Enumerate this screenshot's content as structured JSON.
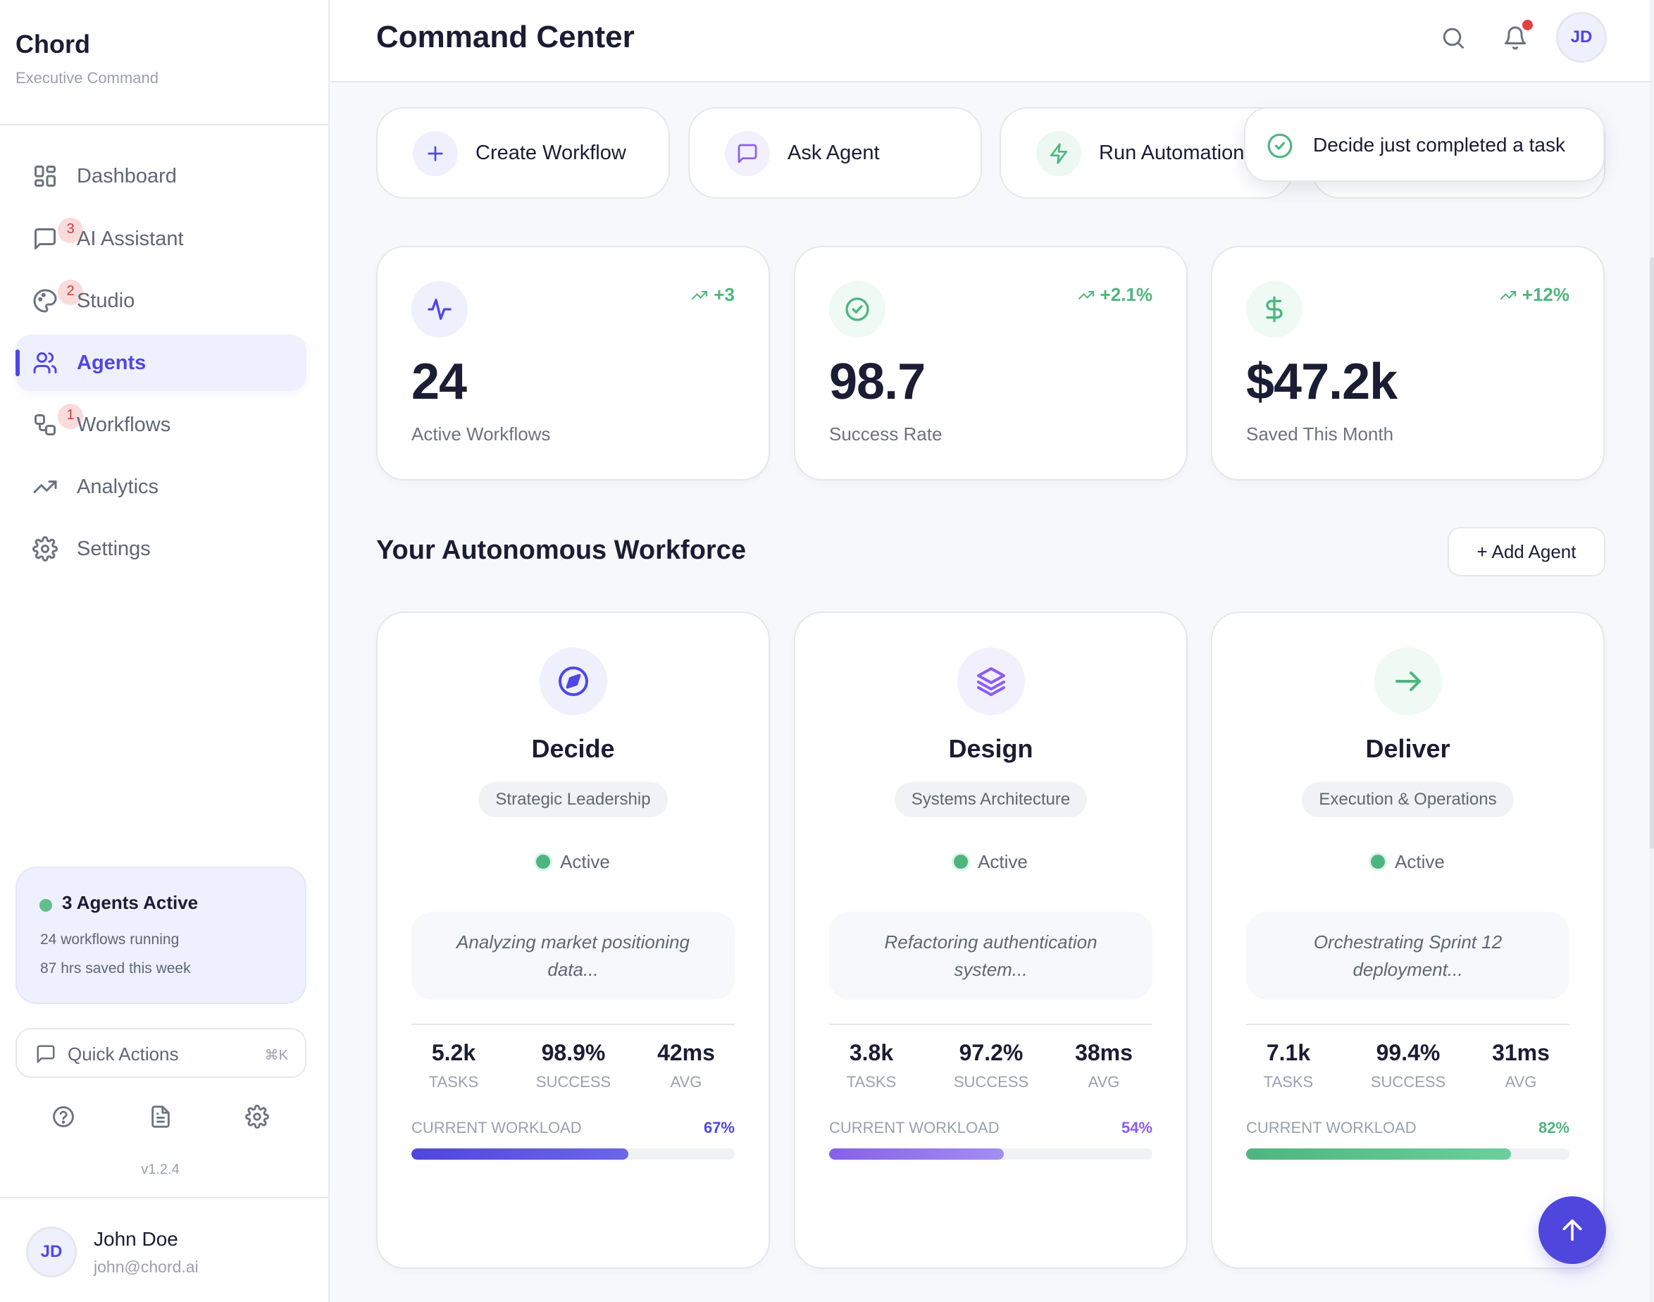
{
  "sidebar": {
    "brand": "Chord",
    "brand_subtitle": "Executive Command",
    "nav": [
      {
        "label": "Dashboard",
        "icon": "dashboard-grid-icon",
        "badge": null,
        "active": false
      },
      {
        "label": "AI Assistant",
        "icon": "message-square-icon",
        "badge": "3",
        "active": false
      },
      {
        "label": "Studio",
        "icon": "palette-icon",
        "badge": "2",
        "active": false
      },
      {
        "label": "Agents",
        "icon": "users-icon",
        "badge": null,
        "active": true
      },
      {
        "label": "Workflows",
        "icon": "workflow-icon",
        "badge": "1",
        "active": false
      },
      {
        "label": "Analytics",
        "icon": "trending-up-icon",
        "badge": null,
        "active": false
      },
      {
        "label": "Settings",
        "icon": "gear-icon",
        "badge": null,
        "active": false
      }
    ],
    "status": {
      "title": "3 Agents Active",
      "line1": "24 workflows running",
      "line2": "87 hrs saved this week"
    },
    "quick_actions": {
      "label": "Quick Actions",
      "shortcut": "⌘K"
    },
    "utility_icons": [
      "help-circle-icon",
      "document-icon",
      "gear-icon"
    ],
    "version": "v1.2.4",
    "user": {
      "initials": "JD",
      "name": "John Doe",
      "email": "john@chord.ai"
    }
  },
  "header": {
    "title": "Command Center",
    "avatar_initials": "JD",
    "has_notification": true
  },
  "quick_actions": [
    {
      "label": "Create Workflow",
      "icon": "plus-icon",
      "color": "#4f46e5",
      "bg": "#eef0fd"
    },
    {
      "label": "Ask Agent",
      "icon": "message-square-icon",
      "color": "#8b5cf6",
      "bg": "#f3f0fe"
    },
    {
      "label": "Run Automation",
      "icon": "lightning-icon",
      "color": "#4fb57f",
      "bg": "#eef8f2"
    }
  ],
  "toast": {
    "message": "Decide just completed a task"
  },
  "stats": [
    {
      "value": "24",
      "label": "Active Workflows",
      "delta": "+3",
      "icon": "activity-icon",
      "color": "#4f46e5",
      "bg": "#eef0fd"
    },
    {
      "value": "98.7",
      "label": "Success Rate",
      "delta": "+2.1%",
      "icon": "check-circle-icon",
      "color": "#4fb57f",
      "bg": "#eefaf3"
    },
    {
      "value": "$47.2k",
      "label": "Saved This Month",
      "delta": "+12%",
      "icon": "dollar-icon",
      "color": "#4fb57f",
      "bg": "#eefaf3"
    }
  ],
  "workforce": {
    "title": "Your Autonomous Workforce",
    "add_label": "+ Add Agent",
    "agents": [
      {
        "name": "Decide",
        "role": "Strategic Leadership",
        "status": "Active",
        "activity": "Analyzing market positioning data...",
        "icon": "compass-icon",
        "color": "#4f46e5",
        "bg": "#eef0fd",
        "metrics": [
          {
            "value": "5.2k",
            "label": "TASKS"
          },
          {
            "value": "98.9%",
            "label": "SUCCESS"
          },
          {
            "value": "42ms",
            "label": "AVG"
          }
        ],
        "workload_label": "CURRENT WORKLOAD",
        "workload_text": "67%",
        "workload": 67,
        "bar_from": "#4f46dd",
        "bar_to": "#6b67e8"
      },
      {
        "name": "Design",
        "role": "Systems Architecture",
        "status": "Active",
        "activity": "Refactoring authentication system...",
        "icon": "layers-icon",
        "color": "#8b5cf6",
        "bg": "#f3f0fe",
        "metrics": [
          {
            "value": "3.8k",
            "label": "TASKS"
          },
          {
            "value": "97.2%",
            "label": "SUCCESS"
          },
          {
            "value": "38ms",
            "label": "AVG"
          }
        ],
        "workload_label": "CURRENT WORKLOAD",
        "workload_text": "54%",
        "workload": 54,
        "bar_from": "#8660e8",
        "bar_to": "#a38ef0"
      },
      {
        "name": "Deliver",
        "role": "Execution & Operations",
        "status": "Active",
        "activity": "Orchestrating Sprint 12 deployment...",
        "icon": "arrow-right-icon",
        "color": "#4fb57f",
        "bg": "#eefaf3",
        "metrics": [
          {
            "value": "7.1k",
            "label": "TASKS"
          },
          {
            "value": "99.4%",
            "label": "SUCCESS"
          },
          {
            "value": "31ms",
            "label": "AVG"
          }
        ],
        "workload_label": "CURRENT WORKLOAD",
        "workload_text": "82%",
        "workload": 82,
        "bar_from": "#4fb57f",
        "bar_to": "#6ccf9c"
      }
    ]
  }
}
